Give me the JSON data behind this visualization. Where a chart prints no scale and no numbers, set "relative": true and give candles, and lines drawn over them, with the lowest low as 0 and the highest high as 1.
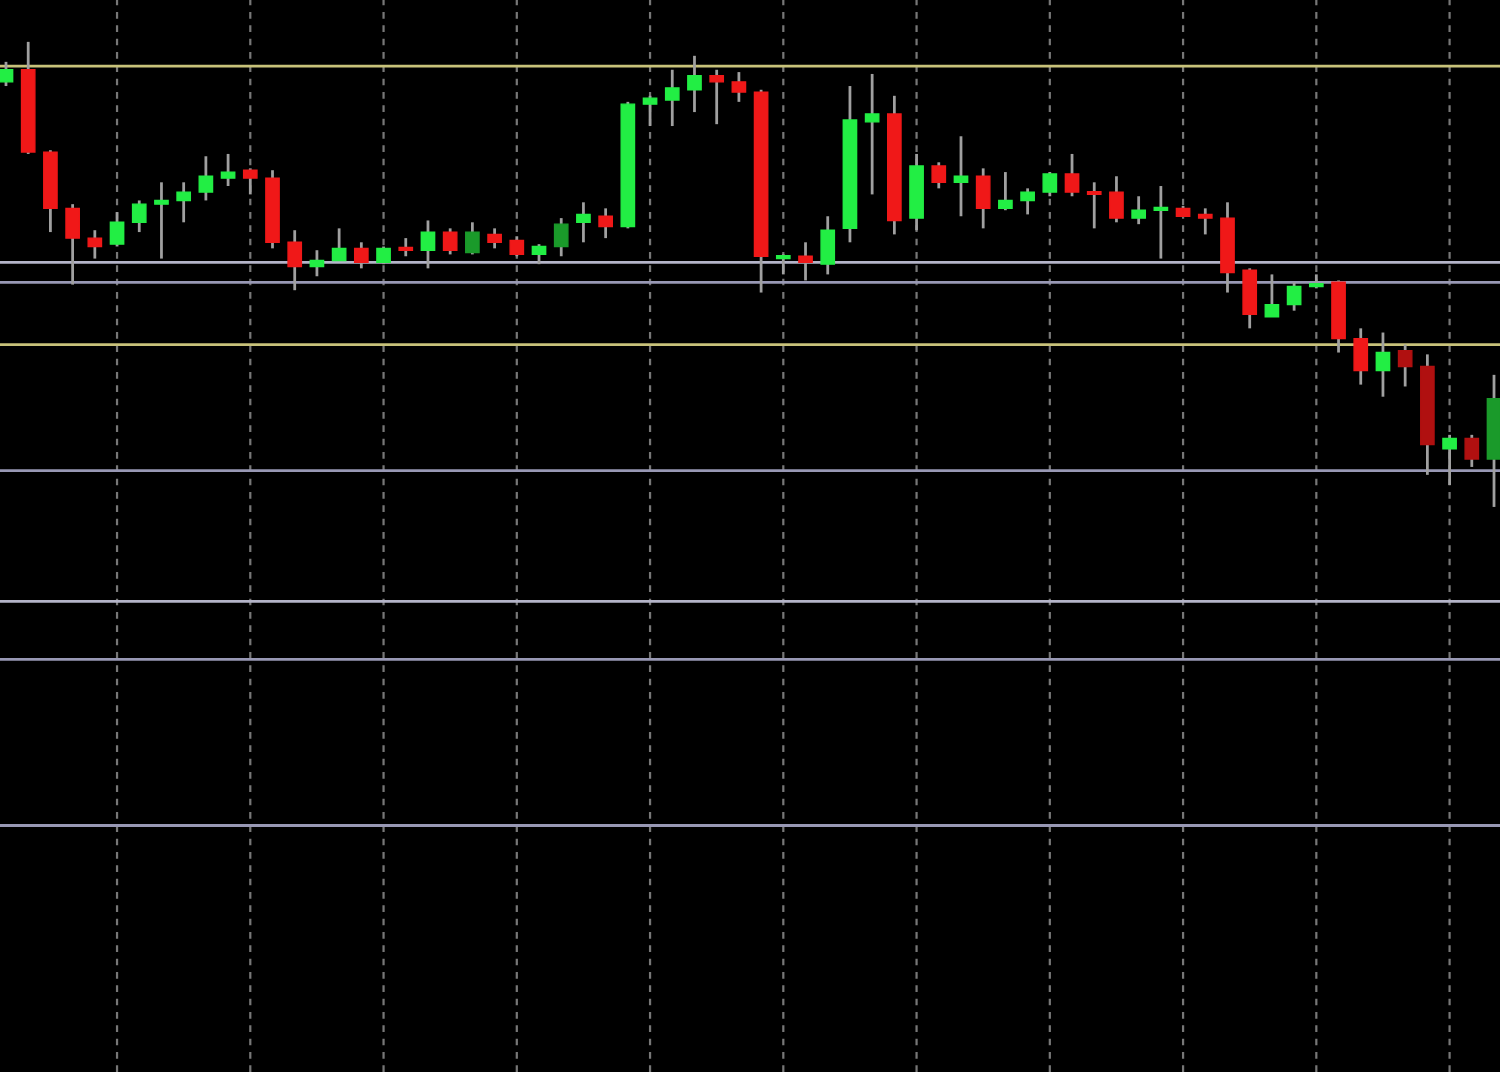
{
  "chart_data": {
    "type": "candlestick",
    "relative": true,
    "categories": [
      null,
      null,
      null,
      null,
      null,
      null,
      null,
      null,
      null,
      null,
      null,
      null,
      null,
      null,
      null,
      null,
      null,
      null,
      null,
      null,
      null,
      null,
      null,
      null,
      null,
      null,
      null,
      null,
      null,
      null,
      null,
      null,
      null,
      null,
      null,
      null,
      null,
      null,
      null,
      null,
      null,
      null,
      null,
      null,
      null,
      null,
      null,
      null,
      null,
      null,
      null,
      null,
      null,
      null,
      null,
      null,
      null,
      null,
      null,
      null,
      null,
      null,
      null,
      null,
      null,
      null,
      null,
      null
    ],
    "ohlc": [
      [
        0.914,
        0.957,
        0.905,
        0.94
      ],
      [
        0.94,
        1,
        0.759,
        0.763
      ],
      [
        0.763,
        0.767,
        0.591,
        0.642
      ],
      [
        0.642,
        0.651,
        0.478,
        0.578
      ],
      [
        0.578,
        0.595,
        0.534,
        0.56
      ],
      [
        0.565,
        0.634,
        0.56,
        0.612
      ],
      [
        0.612,
        0.659,
        0.591,
        0.651
      ],
      [
        0.651,
        0.698,
        0.534,
        0.659
      ],
      [
        0.659,
        0.698,
        0.612,
        0.677
      ],
      [
        0.677,
        0.754,
        0.659,
        0.711
      ],
      [
        0.707,
        0.759,
        0.69,
        0.72
      ],
      [
        0.724,
        0.728,
        0.672,
        0.707
      ],
      [
        0.707,
        0.724,
        0.556,
        0.569
      ],
      [
        0.569,
        0.595,
        0.466,
        0.517
      ],
      [
        0.517,
        0.552,
        0.496,
        0.53
      ],
      [
        0.53,
        0.599,
        0.53,
        0.556
      ],
      [
        0.556,
        0.569,
        0.513,
        0.526
      ],
      [
        0.526,
        0.56,
        0.522,
        0.556
      ],
      [
        0.556,
        0.578,
        0.539,
        0.552
      ],
      [
        0.552,
        0.616,
        0.513,
        0.591
      ],
      [
        0.591,
        0.599,
        0.543,
        0.552
      ],
      [
        0.547,
        0.612,
        0.543,
        0.591
      ],
      [
        0.586,
        0.599,
        0.556,
        0.569
      ],
      [
        0.573,
        0.582,
        0.539,
        0.543
      ],
      [
        0.543,
        0.565,
        0.522,
        0.56
      ],
      [
        0.56,
        0.621,
        0.539,
        0.608
      ],
      [
        0.612,
        0.655,
        0.569,
        0.629
      ],
      [
        0.625,
        0.642,
        0.578,
        0.603
      ],
      [
        0.603,
        0.871,
        0.599,
        0.866
      ],
      [
        0.866,
        0.884,
        0.819,
        0.879
      ],
      [
        0.875,
        0.94,
        0.819,
        0.901
      ],
      [
        0.897,
        0.97,
        0.849,
        0.927
      ],
      [
        0.927,
        0.94,
        0.823,
        0.914
      ],
      [
        0.914,
        0.935,
        0.871,
        0.892
      ],
      [
        0.892,
        0.897,
        0.461,
        0.539
      ],
      [
        0.534,
        0.543,
        0.5,
        0.539
      ],
      [
        0.539,
        0.569,
        0.487,
        0.526
      ],
      [
        0.522,
        0.625,
        0.5,
        0.595
      ],
      [
        0.599,
        0.905,
        0.569,
        0.832
      ],
      [
        0.828,
        0.931,
        0.672,
        0.845
      ],
      [
        0.845,
        0.884,
        0.586,
        0.616
      ],
      [
        0.621,
        0.759,
        0.595,
        0.733
      ],
      [
        0.733,
        0.741,
        0.685,
        0.698
      ],
      [
        0.698,
        0.797,
        0.625,
        0.711
      ],
      [
        0.711,
        0.728,
        0.599,
        0.642
      ],
      [
        0.642,
        0.72,
        0.638,
        0.659
      ],
      [
        0.659,
        0.685,
        0.629,
        0.677
      ],
      [
        0.677,
        0.72,
        0.668,
        0.716
      ],
      [
        0.716,
        0.759,
        0.668,
        0.677
      ],
      [
        0.677,
        0.698,
        0.599,
        0.672
      ],
      [
        0.677,
        0.711,
        0.612,
        0.621
      ],
      [
        0.621,
        0.668,
        0.608,
        0.638
      ],
      [
        0.638,
        0.69,
        0.534,
        0.64
      ],
      [
        0.642,
        0.647,
        0.625,
        0.625
      ],
      [
        0.629,
        0.642,
        0.586,
        0.621
      ],
      [
        0.621,
        0.655,
        0.461,
        0.504
      ],
      [
        0.509,
        0.513,
        0.384,
        0.414
      ],
      [
        0.409,
        0.5,
        0.409,
        0.435
      ],
      [
        0.435,
        0.483,
        0.422,
        0.474
      ],
      [
        0.474,
        0.5,
        0.47,
        0.478
      ],
      [
        0.483,
        0.487,
        0.332,
        0.362
      ],
      [
        0.362,
        0.384,
        0.263,
        0.293
      ],
      [
        0.293,
        0.375,
        0.237,
        0.332
      ],
      [
        0.336,
        0.349,
        0.259,
        0.302
      ],
      [
        0.302,
        0.328,
        0.069,
        0.134
      ],
      [
        0.125,
        0.155,
        0.047,
        0.147
      ],
      [
        0.147,
        0.155,
        0.086,
        0.103
      ],
      [
        0.103,
        0.284,
        0,
        0.233
      ]
    ],
    "colors": [
      "#22ee44",
      "#f01818",
      "#f01818",
      "#f01818",
      "#f01818",
      "#22ee44",
      "#22ee44",
      "#22ee44",
      "#22ee44",
      "#22ee44",
      "#22ee44",
      "#f01818",
      "#f01818",
      "#f01818",
      "#22ee44",
      "#22ee44",
      "#f01818",
      "#22ee44",
      "#f01818",
      "#22ee44",
      "#f01818",
      "#1a9a2a",
      "#f01818",
      "#f01818",
      "#22ee44",
      "#1a9a2a",
      "#22ee44",
      "#f01818",
      "#22ee44",
      "#22ee44",
      "#22ee44",
      "#22ee44",
      "#f01818",
      "#f01818",
      "#f01818",
      "#22ee44",
      "#f01818",
      "#22ee44",
      "#22ee44",
      "#22ee44",
      "#f01818",
      "#22ee44",
      "#f01818",
      "#22ee44",
      "#f01818",
      "#22ee44",
      "#22ee44",
      "#22ee44",
      "#f01818",
      "#f01818",
      "#f01818",
      "#22ee44",
      "#22ee44",
      "#f01818",
      "#f01818",
      "#f01818",
      "#f01818",
      "#22ee44",
      "#22ee44",
      "#22ee44",
      "#f01818",
      "#f01818",
      "#22ee44",
      "#b01010",
      "#b01010",
      "#22ee44",
      "#b01010",
      "#1a9a2a"
    ],
    "ref_lines": [
      {
        "axis": "y",
        "value": 0.948,
        "color": "#c8c27a"
      },
      {
        "axis": "y",
        "value": 0.526,
        "color": "#b4b4c8"
      },
      {
        "axis": "y",
        "value": 0.483,
        "color": "#9898b4"
      },
      {
        "axis": "y",
        "value": 0.349,
        "color": "#c8c27a"
      },
      {
        "axis": "y",
        "value": 0.078,
        "color": "#9898b4"
      },
      {
        "axis": "y",
        "value": -0.203,
        "color": "#b4b4c8"
      },
      {
        "axis": "y",
        "value": -0.328,
        "color": "#9898b4"
      },
      {
        "axis": "y",
        "value": -0.685,
        "color": "#9898b4"
      }
    ],
    "grid": "x"
  }
}
